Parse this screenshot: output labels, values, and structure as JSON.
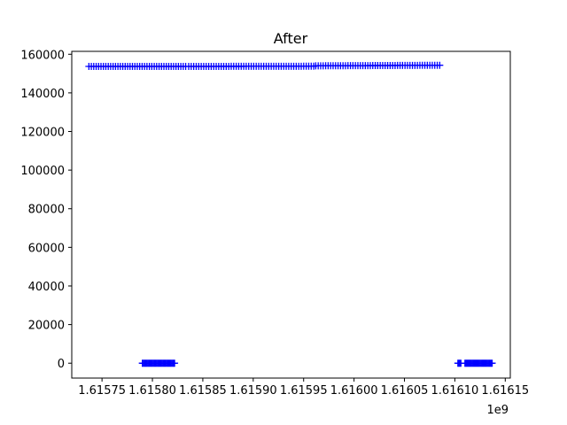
{
  "chart_data": {
    "type": "scatter",
    "title": "After",
    "xlabel": "",
    "ylabel": "",
    "x_offset_label": "1e9",
    "xlim": [
      1615720000,
      1616155000
    ],
    "ylim": [
      -7700,
      161500
    ],
    "x_ticks": [
      {
        "value": 1615750000,
        "label": "1.61575"
      },
      {
        "value": 1615800000,
        "label": "1.61580"
      },
      {
        "value": 1615850000,
        "label": "1.61585"
      },
      {
        "value": 1615900000,
        "label": "1.61590"
      },
      {
        "value": 1615950000,
        "label": "1.61595"
      },
      {
        "value": 1616000000,
        "label": "1.61600"
      },
      {
        "value": 1616050000,
        "label": "1.61605"
      },
      {
        "value": 1616100000,
        "label": "1.61610"
      },
      {
        "value": 1616150000,
        "label": "1.61615"
      }
    ],
    "y_ticks": [
      {
        "value": 0,
        "label": "0"
      },
      {
        "value": 20000,
        "label": "20000"
      },
      {
        "value": 40000,
        "label": "40000"
      },
      {
        "value": 60000,
        "label": "60000"
      },
      {
        "value": 80000,
        "label": "80000"
      },
      {
        "value": 100000,
        "label": "100000"
      },
      {
        "value": 120000,
        "label": "120000"
      },
      {
        "value": 140000,
        "label": "140000"
      },
      {
        "value": 160000,
        "label": "160000"
      }
    ],
    "grid": false,
    "marker": "+",
    "marker_color": "#0000ff",
    "line_color": "#ff0000",
    "series": [
      {
        "segments": [
          {
            "x_start": 1615737000,
            "x_end": 1615833000,
            "y_start": 153700,
            "y_end": 153700,
            "count": 41
          },
          {
            "x_start": 1615836000,
            "x_end": 1615960000,
            "y_start": 153700,
            "y_end": 153800,
            "count": 51
          },
          {
            "x_start": 1615962000,
            "x_end": 1616085000,
            "y_start": 154000,
            "y_end": 154300,
            "count": 51
          },
          {
            "x_start": 1615790000,
            "x_end": 1615822000,
            "y_start": 0,
            "y_end": 0,
            "count": 34
          },
          {
            "x_start": 1616103000,
            "x_end": 1616106000,
            "y_start": 0,
            "y_end": 0,
            "count": 4
          },
          {
            "x_start": 1616110000,
            "x_end": 1616137000,
            "y_start": 0,
            "y_end": 0,
            "count": 30
          }
        ]
      }
    ]
  }
}
